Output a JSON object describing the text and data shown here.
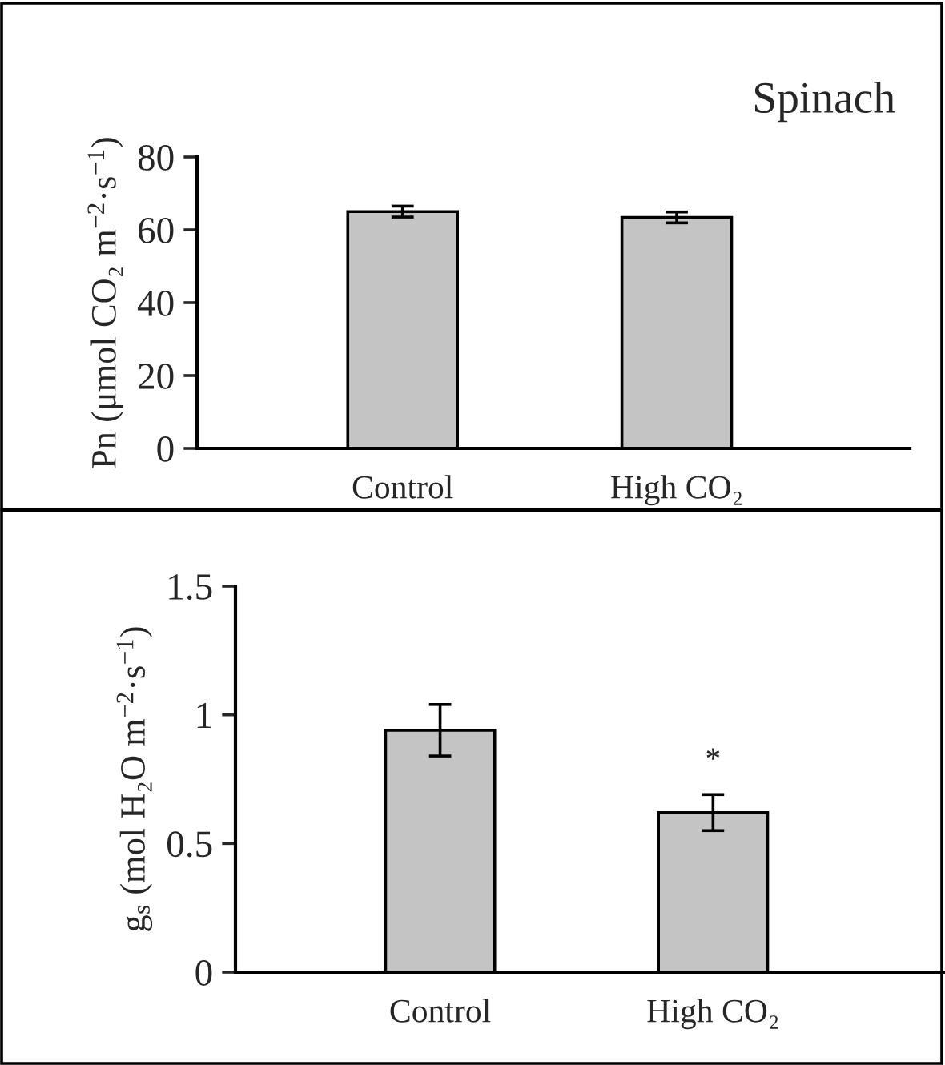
{
  "chart_data": [
    {
      "type": "bar",
      "title": "Spinach",
      "ylabel": "Pn (μmol CO₂ m$^{−2}$·s$^{−1}$)",
      "categories": [
        "Control",
        "High CO₂"
      ],
      "values": [
        65,
        63.4
      ],
      "errors": [
        1.5,
        1.5
      ],
      "color": "#c4c4c4",
      "ylim": [
        0,
        80
      ],
      "yticks": [
        0,
        20,
        40,
        60,
        80
      ],
      "grid": false,
      "legend": false
    },
    {
      "type": "bar",
      "ylabel": "g$_{s}$ (mol H₂O m$^{−2}$·s$^{−1}$)",
      "categories": [
        "Control",
        "High CO₂"
      ],
      "values": [
        0.94,
        0.62
      ],
      "errors": [
        0.1,
        0.07
      ],
      "color": "#c4c4c4",
      "ylim": [
        0,
        1.5
      ],
      "yticks": [
        0,
        0.5,
        1,
        1.5
      ],
      "grid": false,
      "legend": false,
      "annotations": [
        "*"
      ]
    }
  ]
}
